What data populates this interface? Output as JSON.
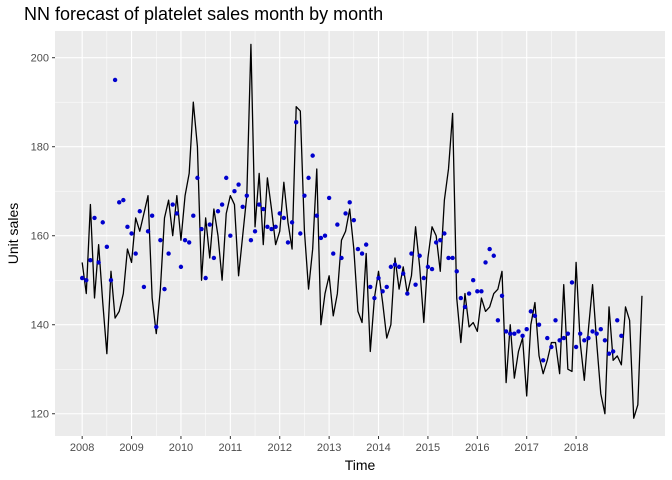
{
  "chart_data": {
    "type": "line",
    "title": "NN forecast of platelet sales month by month",
    "xlabel": "Time",
    "ylabel": "Unit sales",
    "xlim": [
      2007.45,
      2019.8
    ],
    "ylim": [
      115,
      206
    ],
    "x_ticks": [
      2008,
      2009,
      2010,
      2011,
      2012,
      2013,
      2014,
      2015,
      2016,
      2017,
      2018
    ],
    "x_tick_labels": [
      "2008",
      "2009",
      "2010",
      "2011",
      "2012",
      "2013",
      "2014",
      "2015",
      "2016",
      "2017",
      "2018"
    ],
    "y_ticks": [
      120,
      140,
      160,
      180,
      200
    ],
    "y_tick_labels": [
      "120",
      "140",
      "160",
      "180",
      "200"
    ],
    "grid": true,
    "background": "#ebebeb",
    "series": [
      {
        "kind": "line",
        "color": "#000000",
        "start": 2008.0,
        "step": 0.0833333,
        "values": [
          154,
          147,
          167,
          146,
          158,
          145,
          133.5,
          152,
          141.5,
          143,
          147,
          157,
          154,
          164,
          161,
          165,
          169,
          146,
          138,
          148,
          164,
          168,
          160,
          169,
          159,
          169,
          174,
          190,
          180,
          150,
          164,
          155,
          166,
          160,
          150,
          165,
          169,
          167,
          151,
          160,
          169,
          203,
          162,
          174,
          158,
          173,
          166,
          158,
          161,
          172,
          163,
          157,
          189,
          188,
          161,
          148,
          157,
          175,
          140,
          147,
          151,
          142,
          147,
          159,
          161,
          166,
          157,
          143,
          140.5,
          156,
          134,
          146,
          152,
          145,
          137,
          140,
          155,
          148,
          153,
          147,
          151,
          162,
          153,
          140.5,
          155,
          162,
          160,
          152,
          168,
          175,
          187.5,
          146,
          136,
          147,
          139.5,
          140.5,
          138.5,
          146,
          143,
          144,
          147,
          148,
          152,
          127,
          140,
          128,
          134,
          137,
          124,
          140,
          145,
          133,
          129,
          132,
          136,
          136,
          129,
          149,
          130,
          129.5,
          154,
          136,
          127.5,
          139,
          149,
          136,
          124.5,
          120,
          144,
          132,
          133,
          131,
          144,
          141,
          119,
          122,
          146.5
        ]
      },
      {
        "kind": "points",
        "color": "#0000cd",
        "start": 2008.0,
        "step": 0.0833333,
        "values": [
          150.5,
          150,
          154.5,
          164,
          154,
          163,
          157.5,
          150,
          195,
          167.5,
          168,
          162,
          160.5,
          156,
          165.5,
          148.5,
          161,
          164.5,
          139.5,
          159,
          148,
          156,
          167,
          165,
          153,
          159,
          158.5,
          164.5,
          173,
          161.5,
          150.5,
          162.5,
          155,
          165.5,
          167,
          173,
          160,
          170,
          171.5,
          166.5,
          169,
          159,
          161,
          167,
          166,
          162,
          161.5,
          162,
          165,
          164,
          158.5,
          163,
          185.5,
          160.5,
          169,
          173,
          178,
          164.5,
          159.5,
          160,
          168.5,
          156,
          162.5,
          155,
          165,
          167.5,
          163.5,
          157,
          156,
          158,
          148.5,
          146,
          150.5,
          147.5,
          148.5,
          153,
          153.5,
          153,
          151.5,
          147,
          156,
          149,
          155.5,
          150.5,
          153,
          152.5,
          158.5,
          159,
          160.5,
          155,
          155,
          152,
          146,
          144,
          147,
          150,
          147.5,
          147.5,
          154,
          157,
          155.5,
          141,
          146.5,
          138.5,
          138,
          138,
          138.5,
          137.5,
          139,
          143,
          142,
          140,
          132,
          137,
          135,
          141,
          136.5,
          137,
          138,
          149.5,
          135,
          138,
          136.5,
          137,
          138.5,
          138,
          139,
          136.5,
          133.5,
          134,
          141,
          137.5
        ]
      }
    ]
  }
}
